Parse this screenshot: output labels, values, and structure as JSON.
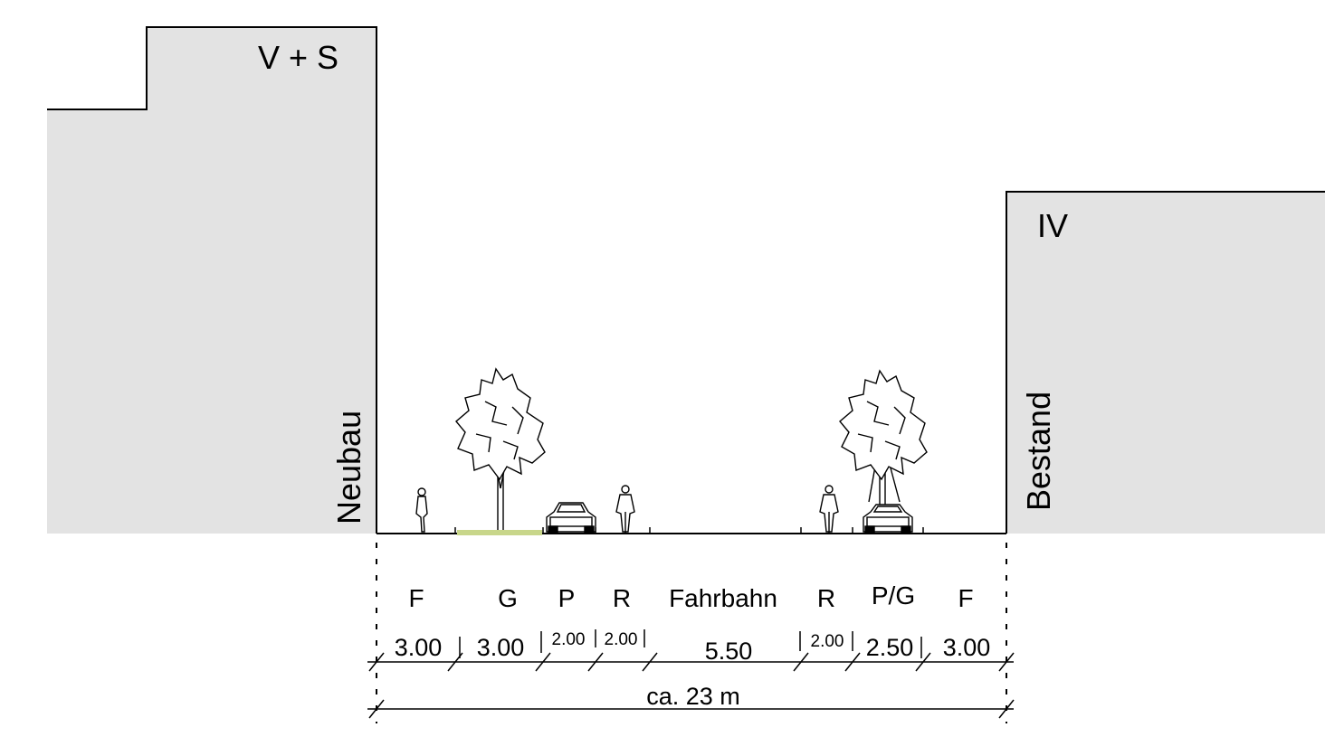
{
  "buildings": {
    "left": {
      "storeys": "V + S",
      "label": "Neubau"
    },
    "right": {
      "storeys": "IV",
      "label": "Bestand"
    }
  },
  "sections": [
    {
      "code": "F",
      "width": "3.00"
    },
    {
      "code": "G",
      "width": "3.00"
    },
    {
      "code": "P",
      "width": "2.00"
    },
    {
      "code": "R",
      "width": "2.00"
    },
    {
      "code": "Fahrbahn",
      "width": "5.50"
    },
    {
      "code": "R",
      "width": "2.00"
    },
    {
      "code": "P/G",
      "width": "2.50"
    },
    {
      "code": "F",
      "width": "3.00"
    }
  ],
  "total": "ca. 23 m",
  "colors": {
    "building": "#e3e3e3",
    "line": "#000000",
    "green_strip": "#c8d68a"
  }
}
